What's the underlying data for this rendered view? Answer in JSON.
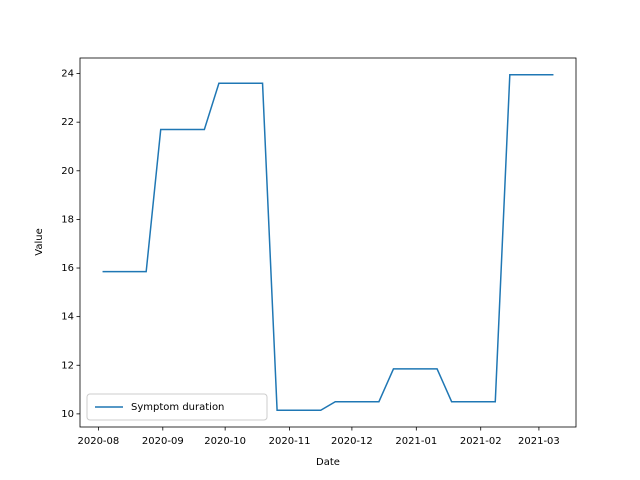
{
  "chart_data": {
    "type": "line",
    "xlabel": "Date",
    "ylabel": "Value",
    "x": [
      18477,
      18484,
      18491,
      18498,
      18505,
      18512,
      18519,
      18526,
      18533,
      18540,
      18547,
      18554,
      18561,
      18568,
      18575,
      18582,
      18589,
      18596,
      18603,
      18610,
      18617,
      18624,
      18631,
      18638,
      18645,
      18652,
      18659,
      18666,
      18673,
      18680,
      18687,
      18694
    ],
    "series": [
      {
        "name": "Symptom duration",
        "color": "#1f77b4",
        "values": [
          15.85,
          15.85,
          15.85,
          15.85,
          21.7,
          21.7,
          21.7,
          21.7,
          23.6,
          23.6,
          23.6,
          23.6,
          10.15,
          10.15,
          10.15,
          10.15,
          10.5,
          10.5,
          10.5,
          10.5,
          11.85,
          11.85,
          11.85,
          11.85,
          10.5,
          10.5,
          10.5,
          10.5,
          23.95,
          23.95,
          23.95,
          23.95
        ]
      }
    ],
    "xlim": [
      18466.15,
      18704.85
    ],
    "xticks": [
      {
        "value": 18475,
        "label": "2020-08"
      },
      {
        "value": 18506,
        "label": "2020-09"
      },
      {
        "value": 18536,
        "label": "2020-10"
      },
      {
        "value": 18567,
        "label": "2020-11"
      },
      {
        "value": 18597,
        "label": "2020-12"
      },
      {
        "value": 18628,
        "label": "2021-01"
      },
      {
        "value": 18659,
        "label": "2021-02"
      },
      {
        "value": 18687,
        "label": "2021-03"
      }
    ],
    "ylim": [
      9.46,
      24.64
    ],
    "yticks": [
      10,
      12,
      14,
      16,
      18,
      20,
      22,
      24
    ],
    "grid": false,
    "legend": "lower left"
  }
}
